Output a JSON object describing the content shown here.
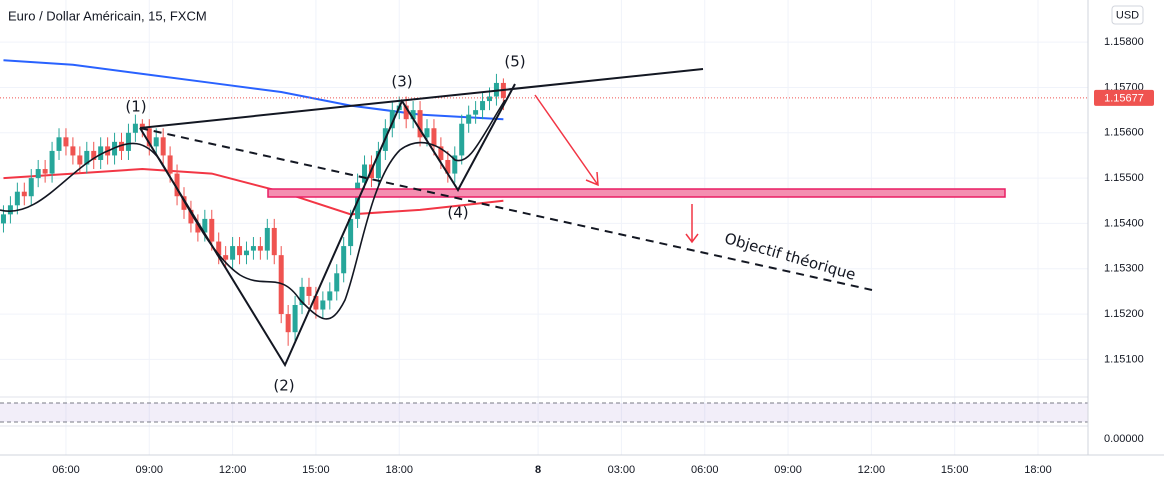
{
  "chart_data": {
    "type": "candlestick",
    "title": "Euro / Dollar Américain, 15, FXCM",
    "currency": "USD",
    "ylim": [
      1.15017,
      1.15893
    ],
    "yticks": [
      {
        "value": 1.151,
        "label": "1.15100"
      },
      {
        "value": 1.152,
        "label": "1.15200"
      },
      {
        "value": 1.153,
        "label": "1.15300"
      },
      {
        "value": 1.154,
        "label": "1.15400"
      },
      {
        "value": 1.155,
        "label": "1.15500"
      },
      {
        "value": 1.156,
        "label": "1.15600"
      },
      {
        "value": 1.157,
        "label": "1.15700"
      },
      {
        "value": 1.158,
        "label": "1.15800"
      }
    ],
    "xlim": [
      -0.5,
      156.2
    ],
    "xticks": [
      {
        "value": 9,
        "label": "06:00"
      },
      {
        "value": 21,
        "label": "09:00"
      },
      {
        "value": 33,
        "label": "12:00"
      },
      {
        "value": 45,
        "label": "15:00"
      },
      {
        "value": 57,
        "label": "18:00"
      },
      {
        "value": 77,
        "label": "8"
      },
      {
        "value": 89,
        "label": "03:00"
      },
      {
        "value": 101,
        "label": "06:00"
      },
      {
        "value": 113,
        "label": "09:00"
      },
      {
        "value": 125,
        "label": "12:00"
      },
      {
        "value": 137,
        "label": "15:00"
      },
      {
        "value": 149,
        "label": "18:00"
      }
    ],
    "last_price": 1.15677,
    "up_color": "#26a69a",
    "down_color": "#ef5350",
    "open": [
      1.154,
      1.1542,
      1.1544,
      1.1547,
      1.1546,
      1.155,
      1.1552,
      1.1551,
      1.1556,
      1.1559,
      1.1557,
      1.1555,
      1.1553,
      1.1556,
      1.1554,
      1.1557,
      1.1555,
      1.1558,
      1.1556,
      1.156,
      1.1562,
      1.1561,
      1.1557,
      1.1559,
      1.1555,
      1.1551,
      1.1546,
      1.1543,
      1.154,
      1.1538,
      1.1541,
      1.1536,
      1.1533,
      1.1532,
      1.1535,
      1.1533,
      1.1534,
      1.1535,
      1.1534,
      1.1539,
      1.1533,
      1.152,
      1.1516,
      1.1522,
      1.1526,
      1.1524,
      1.1521,
      1.1523,
      1.1525,
      1.1529,
      1.1535,
      1.1541,
      1.1549,
      1.1553,
      1.155,
      1.1556,
      1.1561,
      1.1565,
      1.1566,
      1.1563,
      1.1565,
      1.1559,
      1.1561,
      1.1557,
      1.1554,
      1.1551,
      1.1555,
      1.1562,
      1.1564,
      1.1565,
      1.1567,
      1.1568,
      1.1571
    ],
    "high": [
      1.1544,
      1.1546,
      1.1549,
      1.1549,
      1.1552,
      1.1554,
      1.1554,
      1.1558,
      1.1561,
      1.1561,
      1.1559,
      1.1557,
      1.1558,
      1.1558,
      1.1559,
      1.1559,
      1.156,
      1.156,
      1.1562,
      1.1564,
      1.1563,
      1.1563,
      1.1561,
      1.1561,
      1.1557,
      1.1553,
      1.1548,
      1.1545,
      1.1542,
      1.1543,
      1.1543,
      1.1538,
      1.1535,
      1.1537,
      1.1537,
      1.1536,
      1.1537,
      1.1537,
      1.1541,
      1.1541,
      1.1535,
      1.1522,
      1.1524,
      1.1528,
      1.1528,
      1.1526,
      1.1525,
      1.1527,
      1.1531,
      1.1537,
      1.1543,
      1.1551,
      1.1555,
      1.1555,
      1.1558,
      1.1563,
      1.1567,
      1.1568,
      1.1568,
      1.1567,
      1.1567,
      1.1563,
      1.1563,
      1.1559,
      1.1556,
      1.1557,
      1.1564,
      1.1566,
      1.1567,
      1.1569,
      1.157,
      1.1573,
      1.1572
    ],
    "low": [
      1.1538,
      1.154,
      1.1542,
      1.1544,
      1.1544,
      1.1548,
      1.1549,
      1.1549,
      1.1554,
      1.1555,
      1.1553,
      1.1551,
      1.1551,
      1.1552,
      1.1552,
      1.1553,
      1.1553,
      1.1554,
      1.1554,
      1.1558,
      1.1559,
      1.1555,
      1.1555,
      1.1553,
      1.1549,
      1.1544,
      1.1541,
      1.1538,
      1.1536,
      1.1536,
      1.1534,
      1.1531,
      1.153,
      1.153,
      1.1531,
      1.1531,
      1.1532,
      1.1532,
      1.1532,
      1.1531,
      1.1518,
      1.1513,
      1.1514,
      1.152,
      1.1522,
      1.1519,
      1.1519,
      1.1521,
      1.1523,
      1.1527,
      1.1533,
      1.1539,
      1.1547,
      1.1548,
      1.1548,
      1.1554,
      1.1559,
      1.1563,
      1.1561,
      1.1561,
      1.1557,
      1.1557,
      1.1555,
      1.1552,
      1.1549,
      1.1549,
      1.1553,
      1.156,
      1.1562,
      1.1563,
      1.1565,
      1.1566,
      1.1565
    ],
    "close": [
      1.1542,
      1.1544,
      1.1547,
      1.1546,
      1.155,
      1.1552,
      1.1551,
      1.1556,
      1.1559,
      1.1557,
      1.1555,
      1.1553,
      1.1556,
      1.1554,
      1.1557,
      1.1555,
      1.1558,
      1.1556,
      1.156,
      1.1562,
      1.1561,
      1.1557,
      1.1559,
      1.1555,
      1.1551,
      1.1546,
      1.1543,
      1.154,
      1.1538,
      1.1541,
      1.1536,
      1.1533,
      1.1532,
      1.1535,
      1.1533,
      1.1534,
      1.1535,
      1.1534,
      1.1539,
      1.1533,
      1.152,
      1.1516,
      1.1522,
      1.1526,
      1.1524,
      1.1521,
      1.1523,
      1.1525,
      1.1529,
      1.1535,
      1.1541,
      1.1549,
      1.1553,
      1.155,
      1.1556,
      1.1561,
      1.1565,
      1.1566,
      1.1563,
      1.1565,
      1.1559,
      1.1561,
      1.1557,
      1.1554,
      1.1551,
      1.1555,
      1.1562,
      1.1564,
      1.1565,
      1.1567,
      1.1568,
      1.1571,
      1.15677
    ],
    "series": [
      {
        "color": "#2962ff",
        "x": [
          0,
          10,
          20,
          30,
          40,
          50,
          60,
          72
        ],
        "values": [
          1.1576,
          1.1575,
          1.1573,
          1.1571,
          1.1569,
          1.1566,
          1.1564,
          1.1563
        ]
      },
      {
        "color": "#f23645",
        "x": [
          0,
          10,
          20,
          30,
          40,
          50,
          60,
          72
        ],
        "values": [
          1.155,
          1.1551,
          1.1552,
          1.1551,
          1.1547,
          1.1542,
          1.1543,
          1.1545
        ]
      }
    ],
    "annotations": [
      "(1)",
      "(2)",
      "(3)",
      "(4)",
      "(5)",
      "Objectif théorique"
    ],
    "macd_zero": {
      "value": 0,
      "label": "0.00000"
    }
  }
}
